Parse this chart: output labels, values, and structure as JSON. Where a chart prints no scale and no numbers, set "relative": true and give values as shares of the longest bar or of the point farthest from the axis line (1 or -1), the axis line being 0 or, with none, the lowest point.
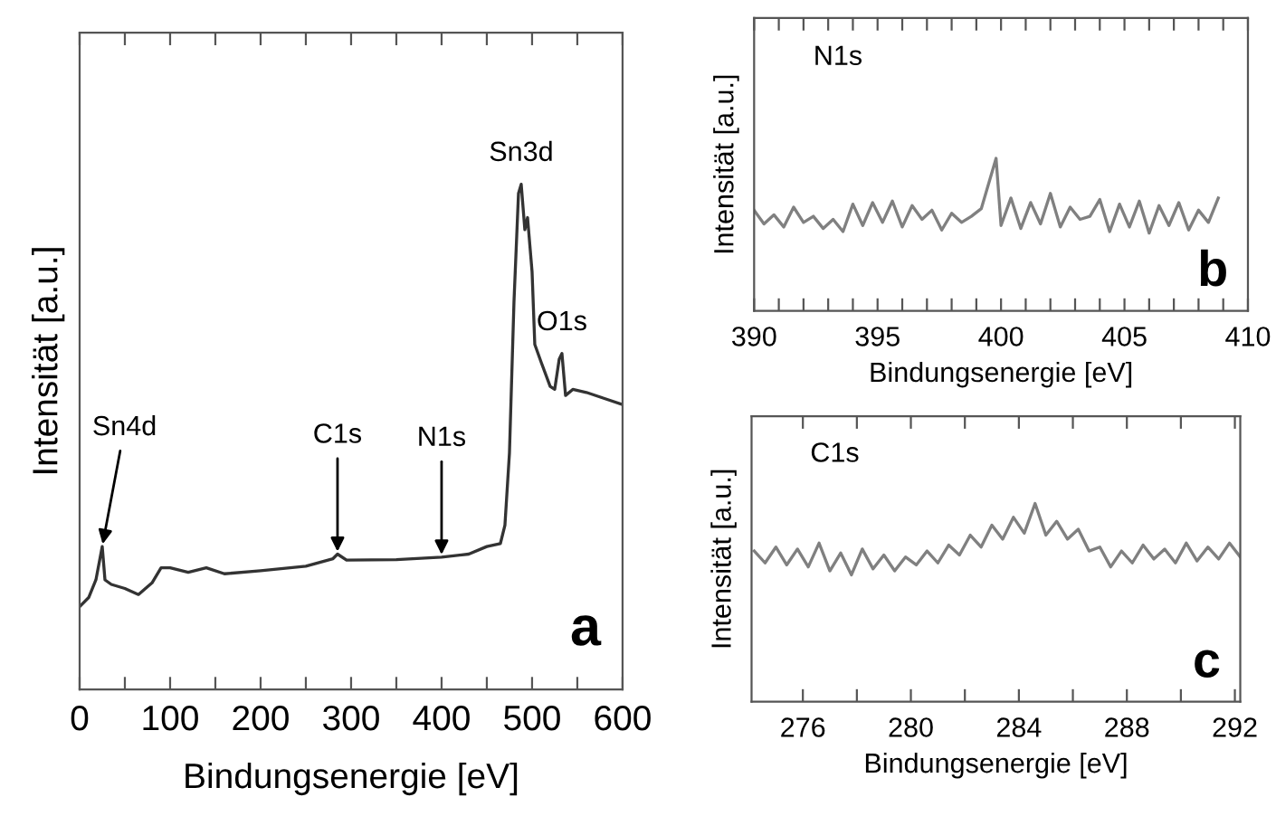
{
  "chart_data": [
    {
      "type": "line",
      "relative": true,
      "xlabel": "Bindungsenergie [eV]",
      "ylabel": "Intensität [a.u.]",
      "xlim": [
        0,
        600
      ],
      "xticks": [
        0,
        {
          "value": 50,
          "label": null
        },
        100,
        {
          "value": 150,
          "label": null
        },
        200,
        {
          "value": 250,
          "label": null
        },
        300,
        {
          "value": 350,
          "label": null
        },
        400,
        {
          "value": 450,
          "label": null
        },
        500,
        {
          "value": 550,
          "label": null
        },
        600
      ],
      "tick_labels": "x",
      "series": [
        {
          "color": "#333333",
          "x": [
            0,
            10,
            18,
            25,
            28,
            35,
            50,
            65,
            80,
            90,
            100,
            120,
            140,
            160,
            200,
            250,
            280,
            285,
            295,
            350,
            400,
            430,
            450,
            465,
            470,
            475,
            480,
            485,
            488,
            492,
            495,
            500,
            503,
            510,
            520,
            525,
            530,
            533,
            537,
            545,
            560,
            580,
            600
          ],
          "values": [
            0.164,
            0.182,
            0.217,
            0.283,
            0.217,
            0.208,
            0.2,
            0.188,
            0.211,
            0.241,
            0.241,
            0.232,
            0.241,
            0.229,
            0.235,
            0.244,
            0.259,
            0.268,
            0.256,
            0.257,
            0.262,
            0.268,
            0.283,
            0.289,
            0.325,
            0.468,
            0.767,
            0.982,
            1.0,
            0.91,
            0.934,
            0.827,
            0.683,
            0.648,
            0.6,
            0.594,
            0.654,
            0.665,
            0.582,
            0.594,
            0.588,
            0.576,
            0.564
          ]
        }
      ],
      "annotations": [
        {
          "text": "Sn4d",
          "x": 25,
          "y": 0.283
        },
        {
          "text": "C1s",
          "x": 285,
          "y": 0.268
        },
        {
          "text": "N1s",
          "x": 400,
          "y": 0.262
        },
        {
          "text": "Sn3d",
          "x": 488,
          "y": 1.0
        },
        {
          "text": "O1s",
          "x": 533,
          "y": 0.665
        },
        "a"
      ]
    },
    {
      "type": "line",
      "relative": true,
      "xlabel": "Bindungsenergie [eV]",
      "ylabel": "Intensität [a.u.]",
      "xlim": [
        390,
        410
      ],
      "xticks": [
        390,
        {
          "value": 391,
          "label": null
        },
        {
          "value": 392,
          "label": null
        },
        {
          "value": 393,
          "label": null
        },
        {
          "value": 394,
          "label": null
        },
        395,
        {
          "value": 396,
          "label": null
        },
        {
          "value": 397,
          "label": null
        },
        {
          "value": 398,
          "label": null
        },
        {
          "value": 399,
          "label": null
        },
        400,
        {
          "value": 401,
          "label": null
        },
        {
          "value": 402,
          "label": null
        },
        {
          "value": 403,
          "label": null
        },
        {
          "value": 404,
          "label": null
        },
        405,
        {
          "value": 406,
          "label": null
        },
        {
          "value": 407,
          "label": null
        },
        {
          "value": 408,
          "label": null
        },
        {
          "value": 409,
          "label": null
        },
        410
      ],
      "tick_labels": "x",
      "series": [
        {
          "color": "#808080",
          "x": [
            390.0,
            390.4,
            390.8,
            391.2,
            391.6,
            392.0,
            392.4,
            392.8,
            393.2,
            393.6,
            394.0,
            394.4,
            394.8,
            395.2,
            395.6,
            396.0,
            396.4,
            396.8,
            397.2,
            397.6,
            398.0,
            398.4,
            398.8,
            399.2,
            399.8,
            400.0,
            400.4,
            400.8,
            401.2,
            401.6,
            402.0,
            402.4,
            402.8,
            403.2,
            403.6,
            404.0,
            404.4,
            404.8,
            405.2,
            405.6,
            406.0,
            406.4,
            406.8,
            407.2,
            407.6,
            408.0,
            408.4,
            408.8
          ],
          "values": [
            0.66,
            0.57,
            0.63,
            0.55,
            0.68,
            0.58,
            0.62,
            0.54,
            0.6,
            0.52,
            0.7,
            0.56,
            0.71,
            0.58,
            0.72,
            0.55,
            0.69,
            0.6,
            0.66,
            0.53,
            0.64,
            0.58,
            0.62,
            0.67,
            1.0,
            0.56,
            0.74,
            0.54,
            0.71,
            0.57,
            0.77,
            0.55,
            0.68,
            0.6,
            0.62,
            0.73,
            0.52,
            0.7,
            0.55,
            0.72,
            0.51,
            0.69,
            0.56,
            0.71,
            0.53,
            0.66,
            0.58,
            0.74
          ]
        }
      ],
      "annotations": [
        "N1s",
        "b"
      ]
    },
    {
      "type": "line",
      "relative": true,
      "xlabel": "Bindungsenergie [eV]",
      "ylabel": "Intensität [a.u.]",
      "xlim": [
        274.1,
        292.2
      ],
      "xticks": [
        276,
        {
          "value": 278,
          "label": null
        },
        280,
        {
          "value": 282,
          "label": null
        },
        284,
        {
          "value": 286,
          "label": null
        },
        288,
        {
          "value": 290,
          "label": null
        },
        292
      ],
      "tick_labels": "x",
      "series": [
        {
          "color": "#808080",
          "x": [
            274.2,
            274.6,
            275.0,
            275.4,
            275.8,
            276.2,
            276.6,
            277.0,
            277.4,
            277.8,
            278.2,
            278.6,
            279.0,
            279.4,
            279.8,
            280.2,
            280.6,
            281.0,
            281.4,
            281.8,
            282.2,
            282.6,
            283.0,
            283.4,
            283.8,
            284.2,
            284.6,
            285.0,
            285.4,
            285.8,
            286.2,
            286.6,
            287.0,
            287.4,
            287.8,
            288.2,
            288.6,
            289.0,
            289.4,
            289.8,
            290.2,
            290.6,
            291.0,
            291.4,
            291.8,
            292.2
          ],
          "values": [
            0.76,
            0.7,
            0.78,
            0.69,
            0.77,
            0.68,
            0.8,
            0.66,
            0.75,
            0.64,
            0.77,
            0.67,
            0.74,
            0.66,
            0.73,
            0.69,
            0.76,
            0.7,
            0.79,
            0.74,
            0.84,
            0.78,
            0.89,
            0.82,
            0.93,
            0.85,
            1.0,
            0.84,
            0.91,
            0.82,
            0.87,
            0.76,
            0.78,
            0.68,
            0.76,
            0.7,
            0.79,
            0.72,
            0.77,
            0.7,
            0.8,
            0.71,
            0.78,
            0.72,
            0.8,
            0.73
          ]
        }
      ],
      "annotations": [
        "C1s",
        "c"
      ]
    }
  ]
}
